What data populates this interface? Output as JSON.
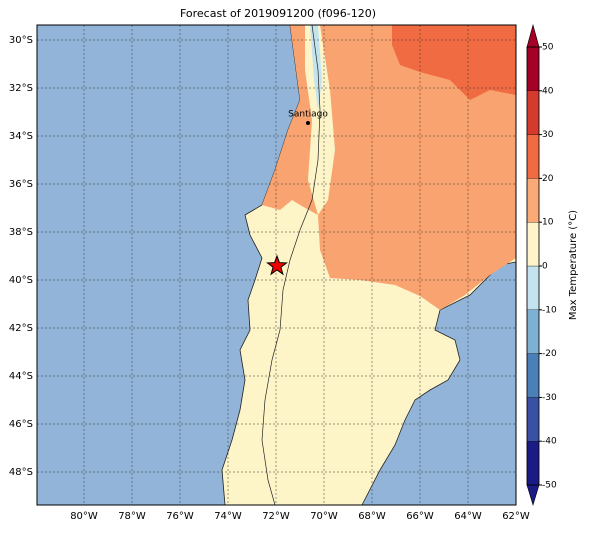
{
  "title": "Forecast of 2019091200 (f096-120)",
  "map": {
    "lat_labels": [
      "30°S",
      "32°S",
      "34°S",
      "36°S",
      "38°S",
      "40°S",
      "42°S",
      "44°S",
      "46°S",
      "48°S"
    ],
    "lon_labels": [
      "80°W",
      "78°W",
      "76°W",
      "74°W",
      "72°W",
      "70°W",
      "68°W",
      "66°W",
      "64°W",
      "62°W"
    ],
    "city": "Santiago"
  },
  "colorbar": {
    "label": "Max Temperature (°C)",
    "lim": [
      -50,
      50
    ],
    "ticks": [
      -50,
      -40,
      -30,
      -20,
      -10,
      0,
      10,
      20,
      30,
      40,
      50
    ],
    "colors": [
      "#1b1b86",
      "#3951a5",
      "#4b7fb8",
      "#7eb0d3",
      "#c3e4ef",
      "#fdf5c9",
      "#fba977",
      "#f06b41",
      "#d43b2c",
      "#a50026"
    ]
  }
}
